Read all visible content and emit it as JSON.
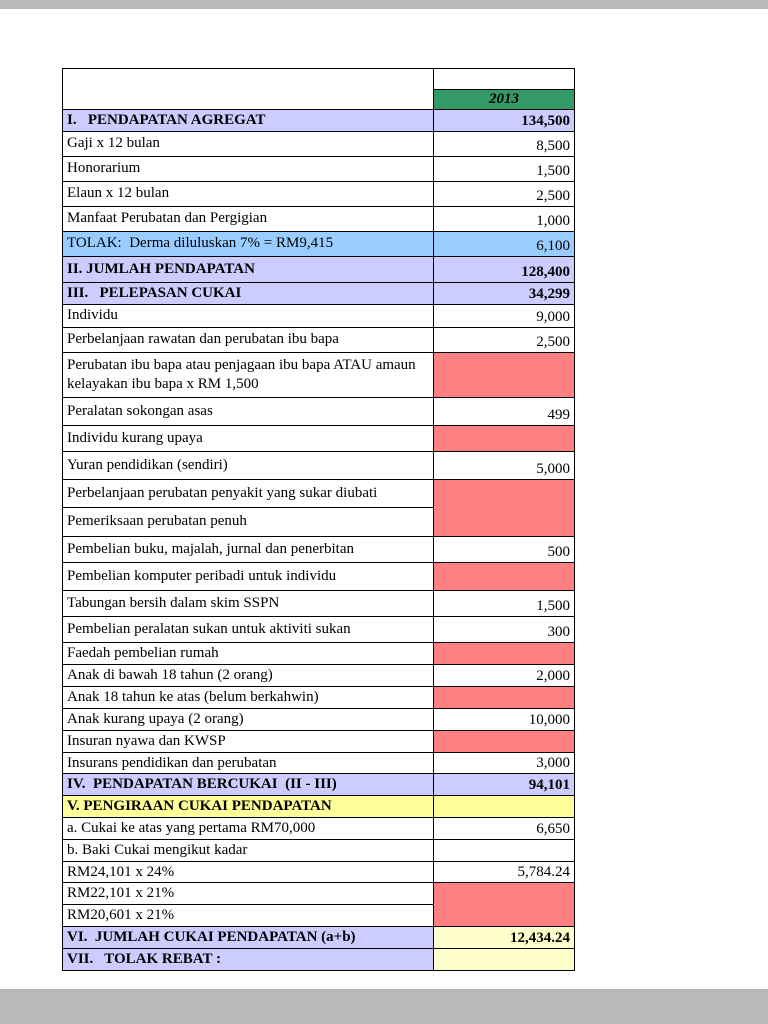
{
  "header": {
    "year": "2013"
  },
  "palette": {
    "white": "#ffffff",
    "green": "#339966",
    "lavender": "#ccccff",
    "blue": "#99ccff",
    "red": "#ff8080",
    "yellow": "#ffff99",
    "paleyellow": "#ffffcc",
    "border": "#000000",
    "gutter": "#b9b9b9"
  },
  "rows": [
    {
      "label": "I.   PENDAPATAN AGREGAT",
      "value": "134,500",
      "label_bg": "lavender",
      "value_bg": "lavender",
      "bold": true
    },
    {
      "label": "Gaji x 12 bulan",
      "value": "8,500",
      "label_bg": "white",
      "value_bg": "white",
      "bold": false
    },
    {
      "label": "Honorarium",
      "value": "1,500",
      "label_bg": "white",
      "value_bg": "white",
      "bold": false
    },
    {
      "label": "Elaun x 12 bulan",
      "value": "2,500",
      "label_bg": "white",
      "value_bg": "white",
      "bold": false
    },
    {
      "label": "Manfaat Perubatan dan Pergigian",
      "value": "1,000",
      "label_bg": "white",
      "value_bg": "white",
      "bold": false
    },
    {
      "label": "TOLAK:  Derma diluluskan 7% = RM9,415",
      "value": "6,100",
      "label_bg": "blue",
      "value_bg": "blue",
      "bold": false
    },
    {
      "label": "II. JUMLAH PENDAPATAN",
      "value": "128,400",
      "label_bg": "lavender",
      "value_bg": "lavender",
      "bold": true
    },
    {
      "label": "III.   PELEPASAN CUKAI",
      "value": "34,299",
      "label_bg": "lavender",
      "value_bg": "lavender",
      "bold": true
    },
    {
      "label": "Individu",
      "value": "9,000",
      "label_bg": "white",
      "value_bg": "white",
      "bold": false
    },
    {
      "label": "Perbelanjaan rawatan dan perubatan ibu bapa",
      "value": "2,500",
      "label_bg": "white",
      "value_bg": "white",
      "bold": false
    },
    {
      "label": "Perubatan ibu bapa atau penjagaan ibu bapa ATAU amaun kelayakan ibu bapa x RM 1,500",
      "value": "",
      "label_bg": "white",
      "value_bg": "red",
      "bold": false
    },
    {
      "label": "Peralatan sokongan asas",
      "value": "499",
      "label_bg": "white",
      "value_bg": "white",
      "bold": false
    },
    {
      "label": "Individu kurang upaya",
      "value": "",
      "label_bg": "white",
      "value_bg": "red",
      "bold": false
    },
    {
      "label": "Yuran pendidikan (sendiri)",
      "value": "5,000",
      "label_bg": "white",
      "value_bg": "white",
      "bold": false
    },
    {
      "label": "Perbelanjaan perubatan penyakit yang sukar diubati",
      "value": "",
      "label_bg": "white",
      "value_bg": "red",
      "bold": false,
      "value_rowspan": 2
    },
    {
      "label": "Pemeriksaan perubatan penuh",
      "value": "",
      "label_bg": "white",
      "value_bg": "red",
      "bold": false,
      "value_skip": true
    },
    {
      "label": "Pembelian buku, majalah, jurnal dan penerbitan",
      "value": "500",
      "label_bg": "white",
      "value_bg": "white",
      "bold": false
    },
    {
      "label": "Pembelian komputer peribadi untuk individu",
      "value": "",
      "label_bg": "white",
      "value_bg": "red",
      "bold": false
    },
    {
      "label": "Tabungan bersih dalam skim SSPN",
      "value": "1,500",
      "label_bg": "white",
      "value_bg": "white",
      "bold": false
    },
    {
      "label": "Pembelian peralatan sukan untuk aktiviti sukan",
      "value": "300",
      "label_bg": "white",
      "value_bg": "white",
      "bold": false
    },
    {
      "label": "Faedah pembelian rumah",
      "value": "",
      "label_bg": "white",
      "value_bg": "red",
      "bold": false
    },
    {
      "label": "Anak di bawah 18 tahun (2 orang)",
      "value": "2,000",
      "label_bg": "white",
      "value_bg": "white",
      "bold": false
    },
    {
      "label": "Anak 18 tahun ke atas (belum berkahwin)",
      "value": "",
      "label_bg": "white",
      "value_bg": "red",
      "bold": false
    },
    {
      "label": "Anak kurang upaya (2 orang)",
      "value": "10,000",
      "label_bg": "white",
      "value_bg": "white",
      "bold": false
    },
    {
      "label": "Insuran nyawa dan KWSP",
      "value": "",
      "label_bg": "white",
      "value_bg": "red",
      "bold": false
    },
    {
      "label": "Insurans pendidikan dan perubatan",
      "value": "3,000",
      "label_bg": "white",
      "value_bg": "white",
      "bold": false
    },
    {
      "label": "IV.  PENDAPATAN BERCUKAI  (II - III)",
      "value": "94,101",
      "label_bg": "lavender",
      "value_bg": "lavender",
      "bold": true
    },
    {
      "label": "V. PENGIRAAN CUKAI PENDAPATAN",
      "value": "",
      "label_bg": "yellow",
      "value_bg": "yellow",
      "bold": true
    },
    {
      "label": "a. Cukai ke atas yang pertama RM70,000",
      "value": "6,650",
      "label_bg": "white",
      "value_bg": "white",
      "bold": false
    },
    {
      "label": "b. Baki Cukai mengikut kadar",
      "value": "",
      "label_bg": "white",
      "value_bg": "white",
      "bold": false
    },
    {
      "label": "RM24,101 x 24%",
      "value": "5,784.24",
      "label_bg": "white",
      "value_bg": "white",
      "bold": false
    },
    {
      "label": "RM22,101 x 21%",
      "value": "",
      "label_bg": "white",
      "value_bg": "red",
      "bold": false,
      "value_rowspan": 2
    },
    {
      "label": "RM20,601 x 21%",
      "value": "",
      "label_bg": "white",
      "value_bg": "red",
      "bold": false,
      "value_skip": true
    },
    {
      "label": "VI.  JUMLAH CUKAI PENDAPATAN (a+b)",
      "value": "12,434.24",
      "label_bg": "lavender",
      "value_bg": "paleyellow",
      "bold": true
    },
    {
      "label": "VII.   TOLAK REBAT :",
      "value": "",
      "label_bg": "lavender",
      "value_bg": "paleyellow",
      "bold": true
    }
  ]
}
